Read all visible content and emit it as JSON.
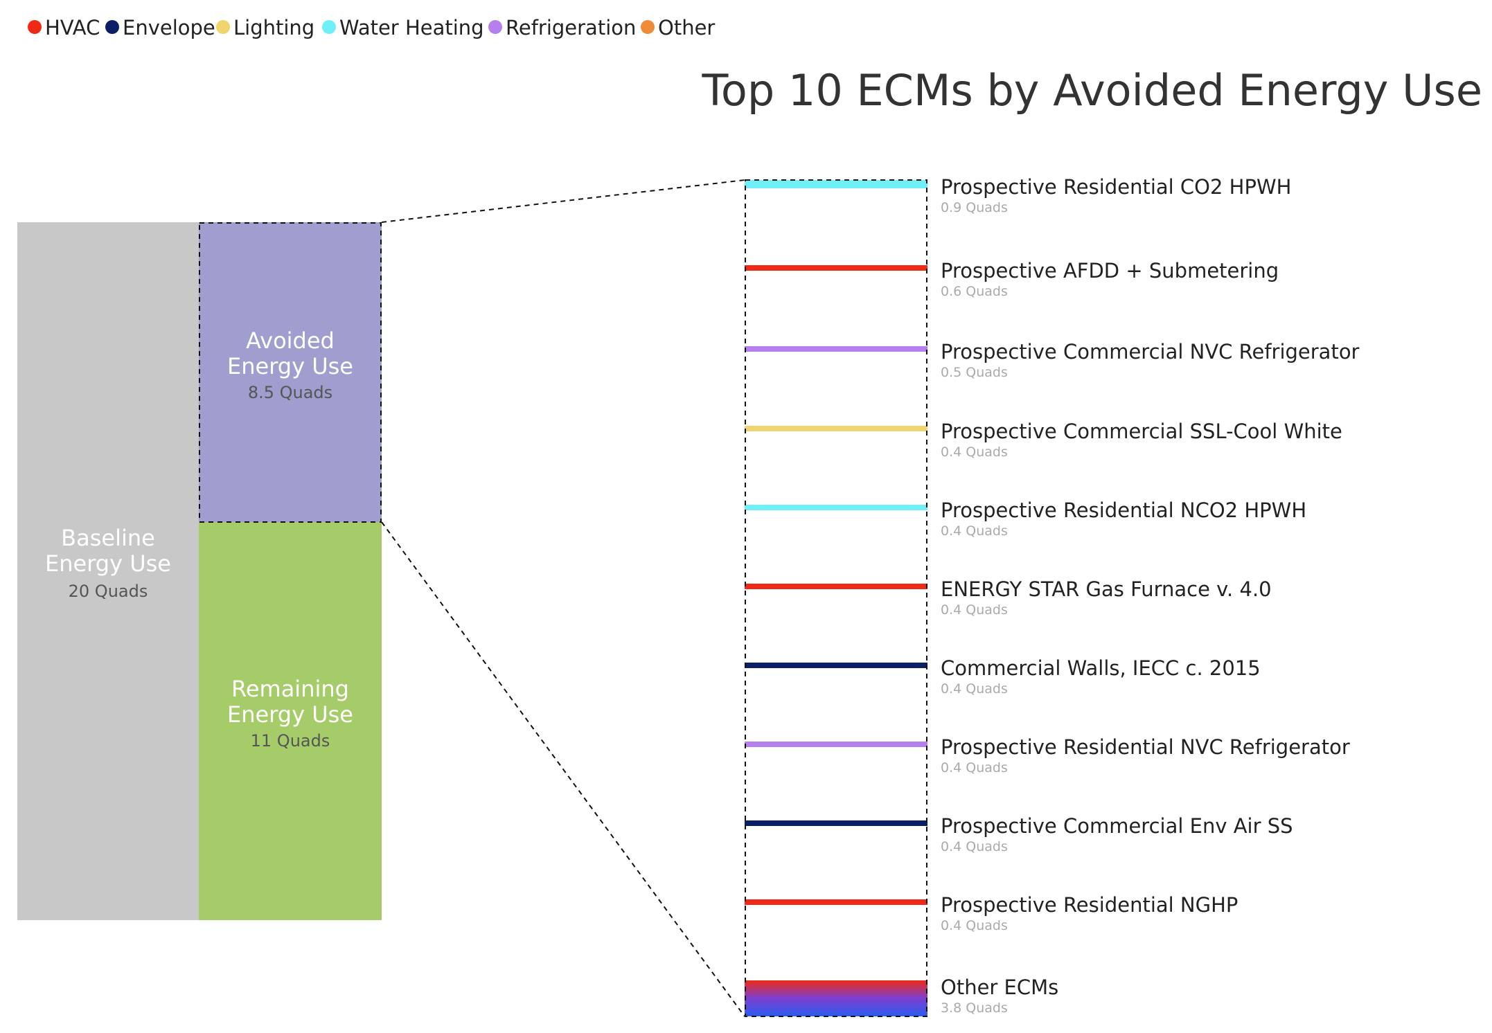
{
  "legend": [
    {
      "label": "HVAC",
      "color": "#ee2a16"
    },
    {
      "label": "Envelope",
      "color": "#0c1f66"
    },
    {
      "label": "Lighting",
      "color": "#f0d46e"
    },
    {
      "label": "Water Heating",
      "color": "#6ff0f7"
    },
    {
      "label": "Refrigeration",
      "color": "#b67ff0"
    },
    {
      "label": "Other",
      "color": "#ef8c37"
    }
  ],
  "chart_data": {
    "type": "bar",
    "title": "Top 10 ECMs by Avoided Energy Use",
    "unit": "Quads",
    "stack": {
      "baseline": {
        "label_line1": "Baseline",
        "label_line2": "Energy Use",
        "value_text": "20 Quads",
        "value": 20,
        "color": "#c8c8c8"
      },
      "avoided": {
        "label_line1": "Avoided",
        "label_line2": "Energy Use",
        "value_text": "8.5 Quads",
        "value": 8.5,
        "color": "#a09ece"
      },
      "remaining": {
        "label_line1": "Remaining",
        "label_line2": "Energy Use",
        "value_text": "11 Quads",
        "value": 11,
        "color": "#a6cc6a"
      }
    },
    "ecms": [
      {
        "name": "Prospective Residential CO2 HPWH",
        "value": 0.9,
        "value_text": "0.9 Quads",
        "category": "Water Heating",
        "color": "#6ff0f7"
      },
      {
        "name": "Prospective AFDD + Submetering",
        "value": 0.6,
        "value_text": "0.6 Quads",
        "category": "HVAC",
        "color": "#ee2a16"
      },
      {
        "name": "Prospective Commercial NVC Refrigerator",
        "value": 0.5,
        "value_text": "0.5 Quads",
        "category": "Refrigeration",
        "color": "#b67ff0"
      },
      {
        "name": "Prospective Commercial SSL-Cool White",
        "value": 0.4,
        "value_text": "0.4 Quads",
        "category": "Lighting",
        "color": "#f0d46e"
      },
      {
        "name": "Prospective Residential NCO2 HPWH",
        "value": 0.4,
        "value_text": "0.4 Quads",
        "category": "Water Heating",
        "color": "#6ff0f7"
      },
      {
        "name": "ENERGY STAR Gas Furnace v. 4.0",
        "value": 0.4,
        "value_text": "0.4 Quads",
        "category": "HVAC",
        "color": "#ee2a16"
      },
      {
        "name": "Commercial Walls, IECC c. 2015",
        "value": 0.4,
        "value_text": "0.4 Quads",
        "category": "Envelope",
        "color": "#0c1f66"
      },
      {
        "name": "Prospective Residential NVC Refrigerator",
        "value": 0.4,
        "value_text": "0.4 Quads",
        "category": "Refrigeration",
        "color": "#b67ff0"
      },
      {
        "name": "Prospective Commercial Env Air SS",
        "value": 0.4,
        "value_text": "0.4 Quads",
        "category": "Envelope",
        "color": "#0c1f66"
      },
      {
        "name": "Prospective Residential NGHP",
        "value": 0.4,
        "value_text": "0.4 Quads",
        "category": "HVAC",
        "color": "#ee2a16"
      }
    ],
    "other": {
      "name": "Other ECMs",
      "value": 3.8,
      "value_text": "3.8 Quads",
      "gradient": [
        "#ee2a16",
        "#7b3fd0",
        "#2a5cf0"
      ]
    }
  }
}
